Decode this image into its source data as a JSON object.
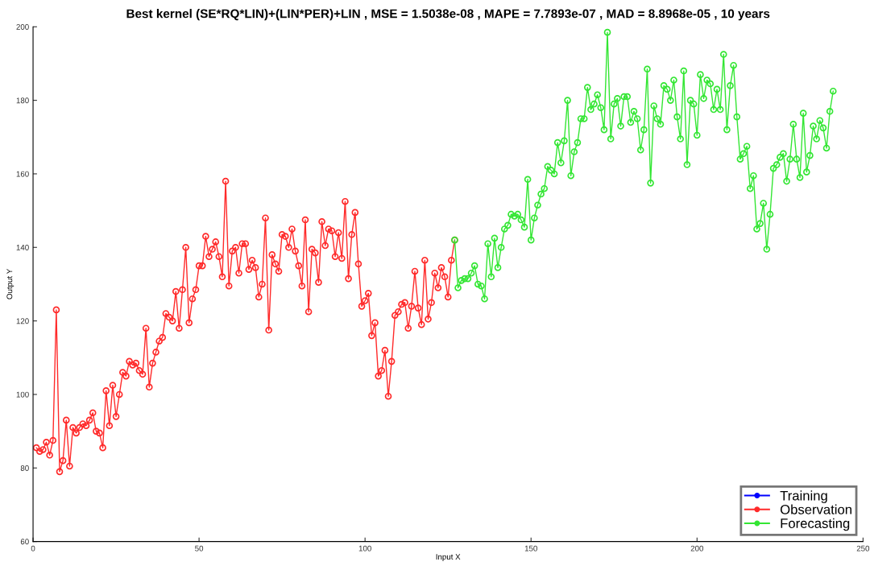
{
  "chart_data": {
    "type": "line",
    "title": "Best kernel (SE*RQ*LIN)+(LIN*PER)+LIN , MSE = 1.5038e-08 , MAPE = 7.7893e-07 , MAD = 8.8968e-05 , 10 years",
    "xlabel": "Input X",
    "ylabel": "Output Y",
    "xlim": [
      0,
      250
    ],
    "ylim": [
      60,
      200
    ],
    "xticks": [
      0,
      50,
      100,
      150,
      200,
      250
    ],
    "yticks": [
      60,
      80,
      100,
      120,
      140,
      160,
      180,
      200
    ],
    "grid": false,
    "legend": "bottom right",
    "marker": "circle",
    "line_style": "solid",
    "series": [
      {
        "name": "Training",
        "color": "#0000ff"
      },
      {
        "name": "Observation",
        "color": "#ff2a2a",
        "x": [
          1,
          2,
          3,
          4,
          5,
          6,
          7,
          8,
          9,
          10,
          11,
          12,
          13,
          14,
          15,
          16,
          17,
          18,
          19,
          20,
          21,
          22,
          23,
          24,
          25,
          26,
          27,
          28,
          29,
          30,
          31,
          32,
          33,
          34,
          35,
          36,
          37,
          38,
          39,
          40,
          41,
          42,
          43,
          44,
          45,
          46,
          47,
          48,
          49,
          50,
          51,
          52,
          53,
          54,
          55,
          56,
          57,
          58,
          59,
          60,
          61,
          62,
          63,
          64,
          65,
          66,
          67,
          68,
          69,
          70,
          71,
          72,
          73,
          74,
          75,
          76,
          77,
          78,
          79,
          80,
          81,
          82,
          83,
          84,
          85,
          86,
          87,
          88,
          89,
          90,
          91,
          92,
          93,
          94,
          95,
          96,
          97,
          98,
          99,
          100,
          101,
          102,
          103,
          104,
          105,
          106,
          107,
          108,
          109,
          110,
          111,
          112,
          113,
          114,
          115,
          116,
          117,
          118,
          119,
          120,
          121,
          122,
          123,
          124,
          125,
          126,
          127
        ],
        "values": [
          85.5,
          84.5,
          85,
          87,
          83.5,
          87.5,
          123,
          79,
          82,
          93,
          80.5,
          91,
          89.5,
          91,
          92,
          91.5,
          93,
          95,
          90,
          89.5,
          85.5,
          101,
          91.5,
          102.5,
          94,
          100,
          106,
          105,
          109,
          108,
          108.5,
          106.5,
          105.5,
          118,
          102,
          108.5,
          111.5,
          114.5,
          115.5,
          122,
          121,
          120,
          128,
          118,
          128.5,
          140,
          119.5,
          126,
          128.5,
          135,
          135,
          143,
          137.5,
          139.5,
          141.5,
          137.5,
          132,
          158,
          129.5,
          139,
          140,
          133,
          141,
          141,
          134,
          136.5,
          134.5,
          126.5,
          130,
          148,
          117.5,
          138,
          135.5,
          133.5,
          143.5,
          143,
          140,
          145,
          139,
          135,
          129.5,
          147.5,
          122.5,
          139.5,
          138.5,
          130.5,
          147,
          140.5,
          145,
          144.5,
          137.5,
          144,
          137,
          152.5,
          131.5,
          143.5,
          149.5,
          135.5,
          124,
          125.5,
          127.5,
          116,
          119.5,
          105,
          106.5,
          112,
          99.5,
          109,
          121.5,
          122.5,
          124.5,
          125,
          118,
          124,
          133.5,
          123.5,
          119,
          136.5,
          120.5,
          125,
          133,
          129,
          134.5,
          132,
          126.5,
          136.5,
          142
        ]
      },
      {
        "name": "Forecasting",
        "color": "#33e633",
        "x": [
          127,
          128,
          129,
          130,
          131,
          132,
          133,
          134,
          135,
          136,
          137,
          138,
          139,
          140,
          141,
          142,
          143,
          144,
          145,
          146,
          147,
          148,
          149,
          150,
          151,
          152,
          153,
          154,
          155,
          156,
          157,
          158,
          159,
          160,
          161,
          162,
          163,
          164,
          165,
          166,
          167,
          168,
          169,
          170,
          171,
          172,
          173,
          174,
          175,
          176,
          177,
          178,
          179,
          180,
          181,
          182,
          183,
          184,
          185,
          186,
          187,
          188,
          189,
          190,
          191,
          192,
          193,
          194,
          195,
          196,
          197,
          198,
          199,
          200,
          201,
          202,
          203,
          204,
          205,
          206,
          207,
          208,
          209,
          210,
          211,
          212,
          213,
          214,
          215,
          216,
          217,
          218,
          219,
          220,
          221,
          222,
          223,
          224,
          225,
          226,
          227,
          228,
          229,
          230,
          231,
          232,
          233,
          234,
          235,
          236,
          237,
          238,
          239,
          240,
          241
        ],
        "values": [
          142,
          129,
          131,
          131.5,
          131.5,
          133,
          135,
          130,
          129.5,
          126,
          141,
          132,
          142.5,
          134.5,
          140,
          145,
          146,
          149,
          148.5,
          149,
          147.5,
          145.5,
          158.5,
          142,
          148,
          151.5,
          154.5,
          156,
          162,
          161,
          160,
          168.5,
          163,
          169,
          180,
          159.5,
          166,
          168.5,
          175,
          175,
          183.5,
          177.5,
          179,
          181.5,
          178,
          172,
          198.5,
          169.5,
          179,
          180.5,
          173,
          181,
          181,
          174,
          177,
          175,
          166.5,
          172,
          188.5,
          157.5,
          178.5,
          175,
          173.5,
          184,
          183,
          180,
          185.5,
          175.5,
          169.5,
          188,
          162.5,
          180,
          179,
          170.5,
          187,
          180.5,
          185.5,
          184.5,
          177.5,
          183,
          177.5,
          192.5,
          172,
          184,
          189.5,
          175.5,
          164,
          165.5,
          167.5,
          156,
          159.5,
          145,
          146.5,
          152,
          139.5,
          149,
          161.5,
          162.5,
          164.5,
          165.5,
          158,
          164,
          173.5,
          164,
          159,
          176.5,
          160.5,
          165,
          173,
          169.5,
          174.5,
          172.5,
          167,
          177,
          182.5
        ]
      }
    ]
  }
}
